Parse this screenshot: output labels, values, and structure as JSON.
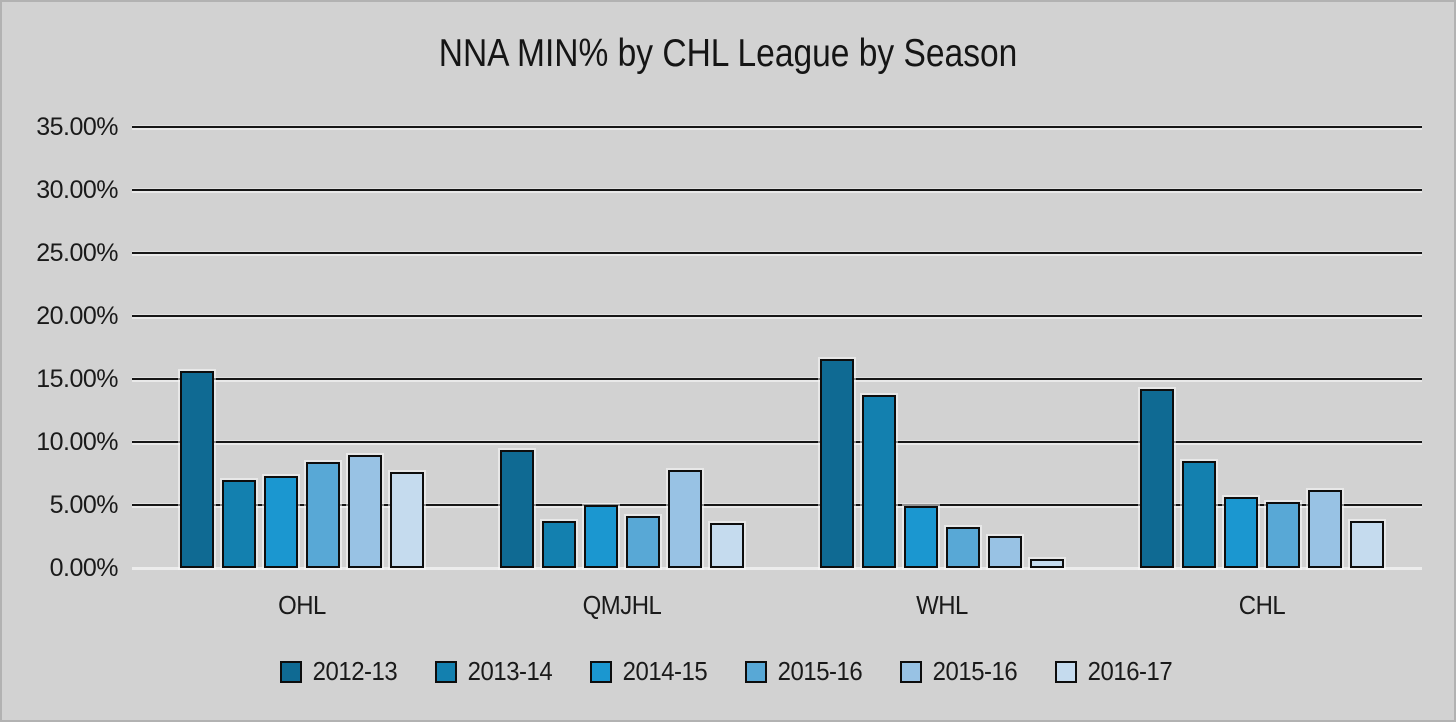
{
  "window": {
    "background_color": "#d2d2d2",
    "border_color": "#b2b2b2",
    "gridline_color": "#161616",
    "baseline_color": "#ececec",
    "text_color": "#1a1a1a"
  },
  "chart_data": {
    "type": "bar",
    "title": "NNA MIN% by CHL League by Season",
    "xlabel": "",
    "ylabel": "",
    "ylim": [
      0,
      35
    ],
    "grid": true,
    "legend_position": "bottom",
    "y_ticks": [
      "35.00%",
      "30.00%",
      "25.00%",
      "20.00%",
      "15.00%",
      "10.00%",
      "5.00%",
      "0.00%"
    ],
    "categories": [
      "OHL",
      "QMJHL",
      "WHL",
      "CHL"
    ],
    "series": [
      {
        "name": "2012-13",
        "color": "#0f6a93",
        "values": [
          15.35,
          9.05,
          16.3,
          13.9
        ]
      },
      {
        "name": "2013-14",
        "color": "#1380af",
        "values": [
          6.7,
          3.4,
          13.45,
          8.2
        ]
      },
      {
        "name": "2014-15",
        "color": "#1b97d0",
        "values": [
          7.0,
          4.65,
          4.6,
          5.35
        ]
      },
      {
        "name": "2015-16",
        "color": "#58a8d6",
        "values": [
          8.1,
          3.8,
          2.95,
          4.9
        ]
      },
      {
        "name": "2015-16",
        "color": "#98c2e4",
        "values": [
          8.65,
          7.45,
          2.2,
          5.85
        ]
      },
      {
        "name": "2016-17",
        "color": "#c5dbee",
        "values": [
          7.3,
          3.25,
          0.4,
          3.45
        ]
      }
    ]
  }
}
